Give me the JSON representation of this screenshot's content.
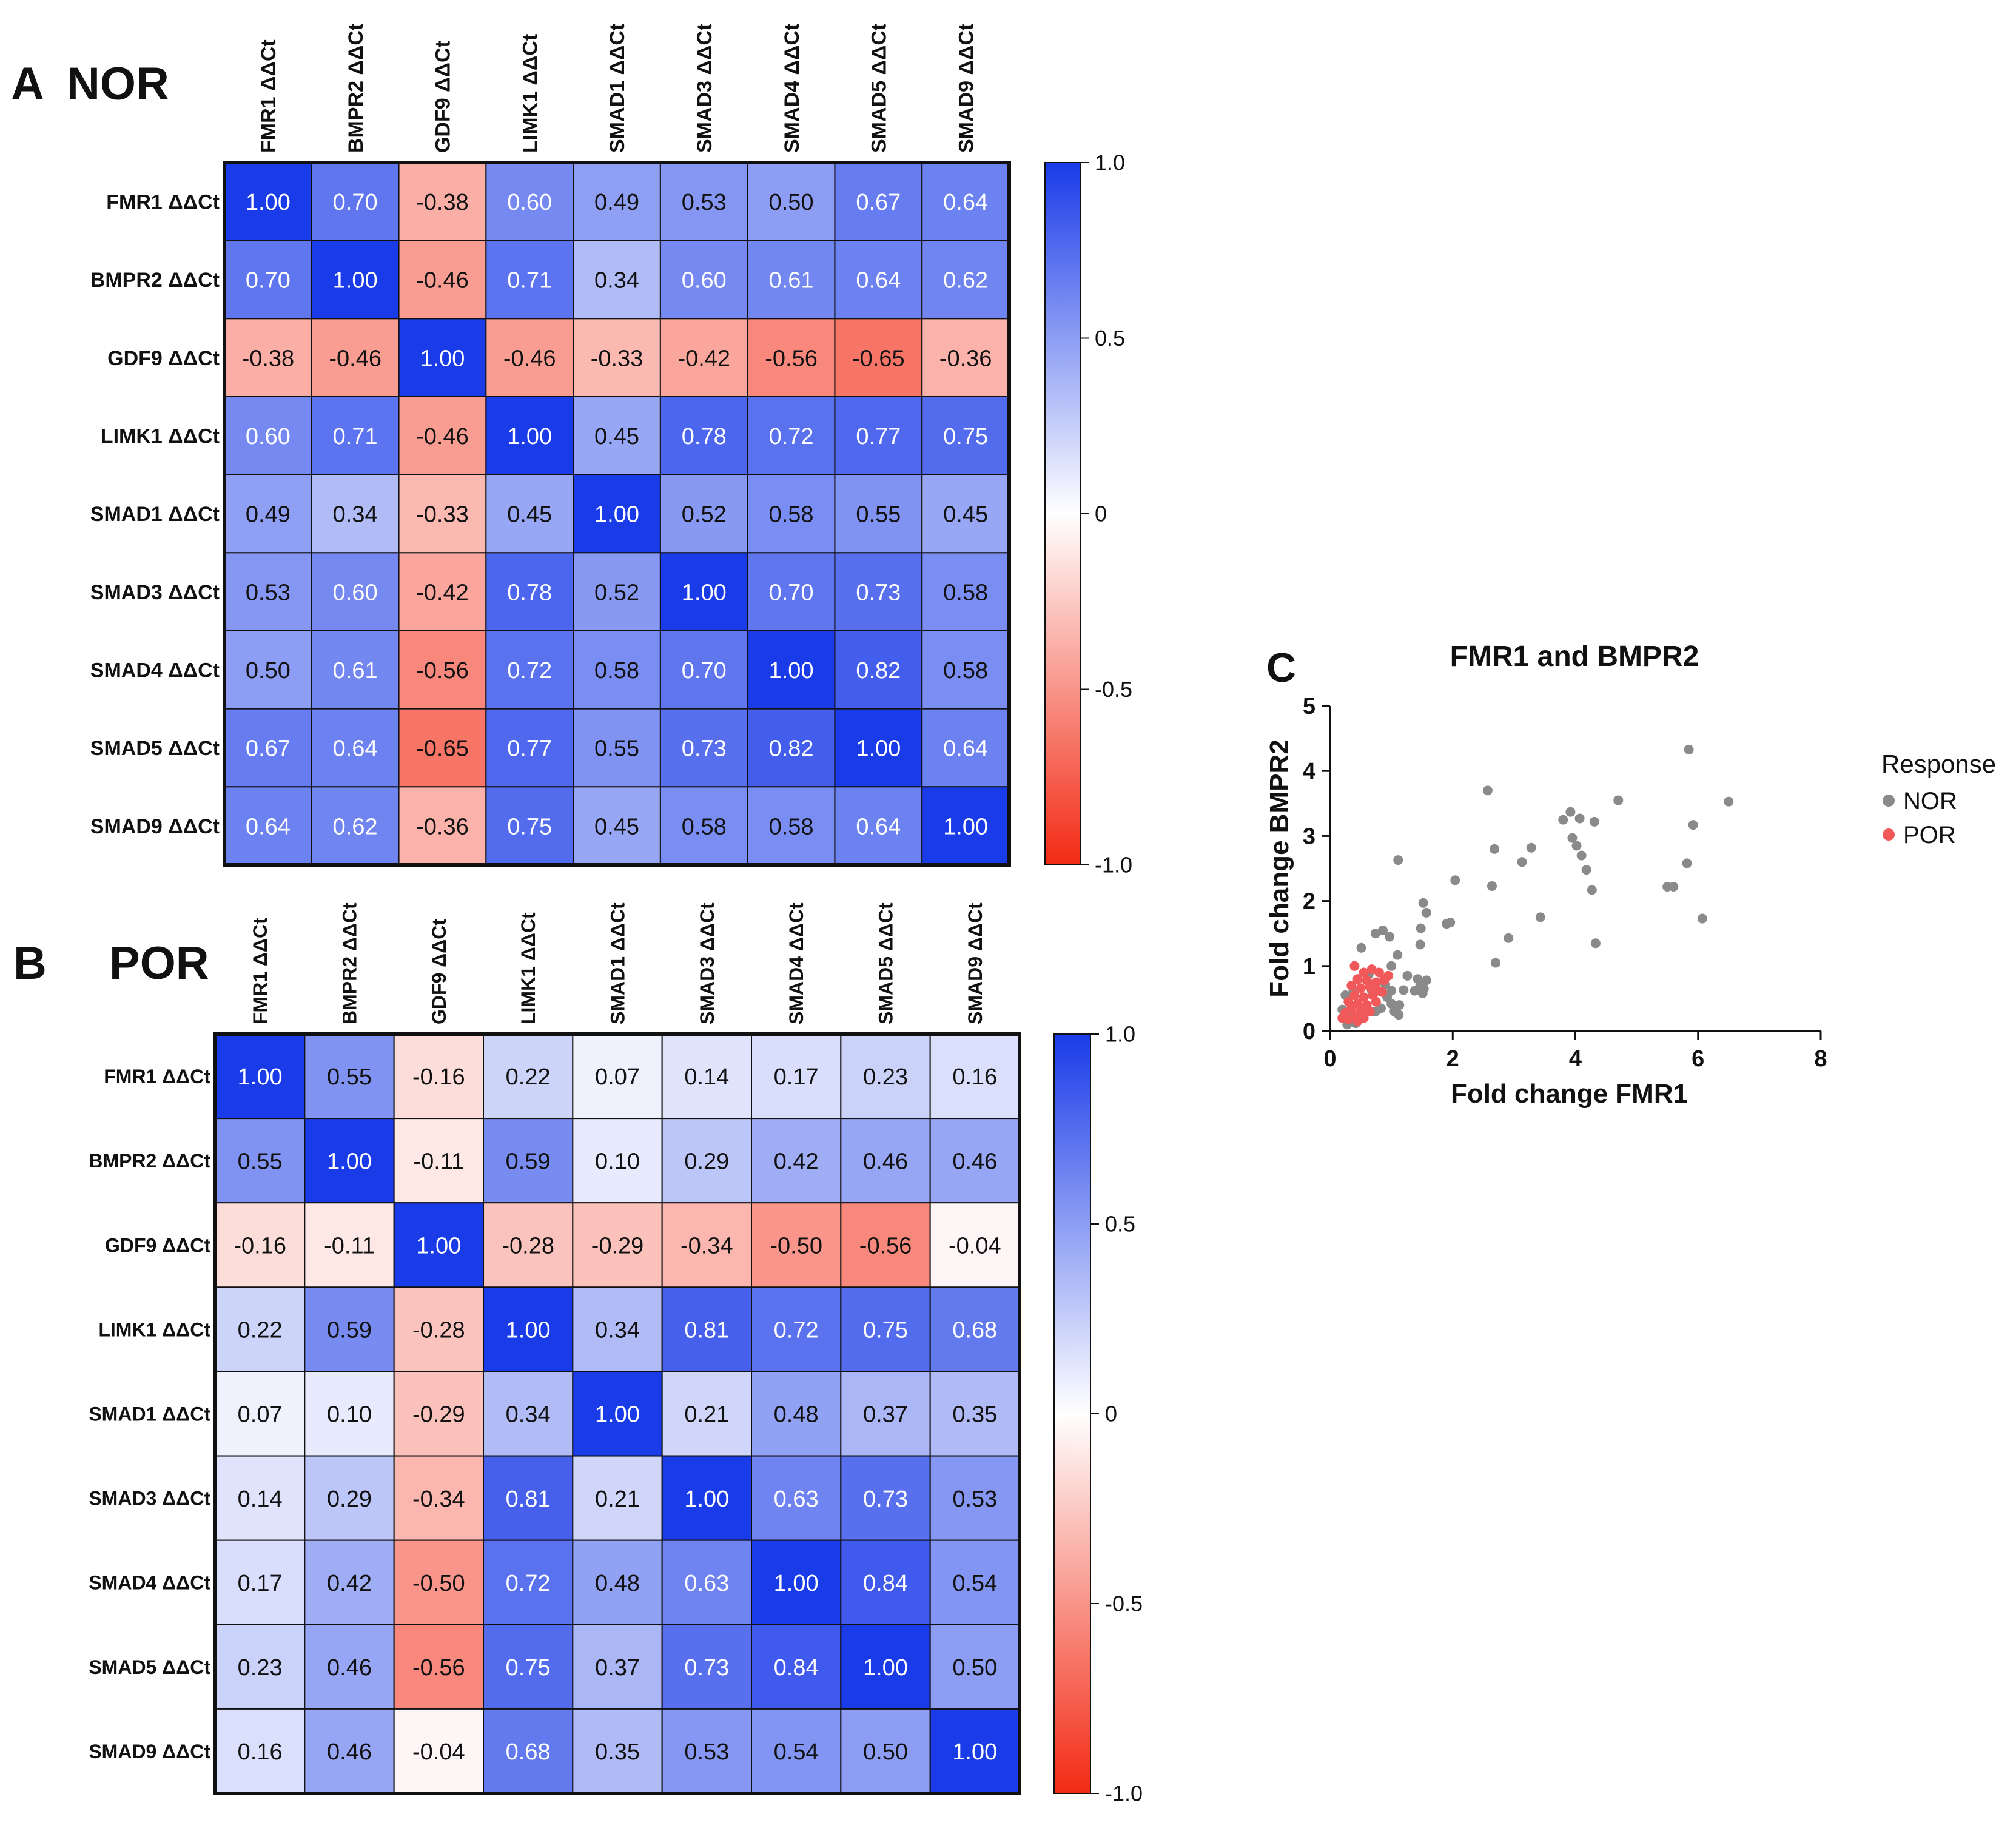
{
  "panels": {
    "a": {
      "letter": "A",
      "title": "NOR"
    },
    "b": {
      "letter": "B",
      "title": "POR"
    },
    "c": {
      "letter": "C",
      "title": "FMR1 and BMPR2"
    }
  },
  "colors": {
    "positive": "#1a3be8",
    "negative": "#f22a14",
    "neutral": "#ffffff",
    "nor_points": "#8a8a8a",
    "por_points": "#f0585a"
  },
  "colorbar": {
    "ticks": [
      "1.0",
      "0.5",
      "0",
      "-0.5",
      "-1.0"
    ]
  },
  "chart_data": [
    {
      "type": "heatmap",
      "title": "NOR",
      "labels": [
        "FMR1 ΔΔCt",
        "BMPR2 ΔΔCt",
        "GDF9 ΔΔCt",
        "LIMK1 ΔΔCt",
        "SMAD1 ΔΔCt",
        "SMAD3 ΔΔCt",
        "SMAD4 ΔΔCt",
        "SMAD5 ΔΔCt",
        "SMAD9 ΔΔCt"
      ],
      "values": [
        [
          "1.00",
          "0.70",
          "-0.38",
          "0.60",
          "0.49",
          "0.53",
          "0.50",
          "0.67",
          "0.64"
        ],
        [
          "0.70",
          "1.00",
          "-0.46",
          "0.71",
          "0.34",
          "0.60",
          "0.61",
          "0.64",
          "0.62"
        ],
        [
          "-0.38",
          "-0.46",
          "1.00",
          "-0.46",
          "-0.33",
          "-0.42",
          "-0.56",
          "-0.65",
          "-0.36"
        ],
        [
          "0.60",
          "0.71",
          "-0.46",
          "1.00",
          "0.45",
          "0.78",
          "0.72",
          "0.77",
          "0.75"
        ],
        [
          "0.49",
          "0.34",
          "-0.33",
          "0.45",
          "1.00",
          "0.52",
          "0.58",
          "0.55",
          "0.45"
        ],
        [
          "0.53",
          "0.60",
          "-0.42",
          "0.78",
          "0.52",
          "1.00",
          "0.70",
          "0.73",
          "0.58"
        ],
        [
          "0.50",
          "0.61",
          "-0.56",
          "0.72",
          "0.58",
          "0.70",
          "1.00",
          "0.82",
          "0.58"
        ],
        [
          "0.67",
          "0.64",
          "-0.65",
          "0.77",
          "0.55",
          "0.73",
          "0.82",
          "1.00",
          "0.64"
        ],
        [
          "0.64",
          "0.62",
          "-0.36",
          "0.75",
          "0.45",
          "0.58",
          "0.58",
          "0.64",
          "1.00"
        ]
      ],
      "vmin": -1.0,
      "vmax": 1.0
    },
    {
      "type": "heatmap",
      "title": "POR",
      "labels": [
        "FMR1 ΔΔCt",
        "BMPR2 ΔΔCt",
        "GDF9 ΔΔCt",
        "LIMK1 ΔΔCt",
        "SMAD1 ΔΔCt",
        "SMAD3 ΔΔCt",
        "SMAD4 ΔΔCt",
        "SMAD5 ΔΔCt",
        "SMAD9 ΔΔCt"
      ],
      "values": [
        [
          "1.00",
          "0.55",
          "-0.16",
          "0.22",
          "0.07",
          "0.14",
          "0.17",
          "0.23",
          "0.16"
        ],
        [
          "0.55",
          "1.00",
          "-0.11",
          "0.59",
          "0.10",
          "0.29",
          "0.42",
          "0.46",
          "0.46"
        ],
        [
          "-0.16",
          "-0.11",
          "1.00",
          "-0.28",
          "-0.29",
          "-0.34",
          "-0.50",
          "-0.56",
          "-0.04"
        ],
        [
          "0.22",
          "0.59",
          "-0.28",
          "1.00",
          "0.34",
          "0.81",
          "0.72",
          "0.75",
          "0.68"
        ],
        [
          "0.07",
          "0.10",
          "-0.29",
          "0.34",
          "1.00",
          "0.21",
          "0.48",
          "0.37",
          "0.35"
        ],
        [
          "0.14",
          "0.29",
          "-0.34",
          "0.81",
          "0.21",
          "1.00",
          "0.63",
          "0.73",
          "0.53"
        ],
        [
          "0.17",
          "0.42",
          "-0.50",
          "0.72",
          "0.48",
          "0.63",
          "1.00",
          "0.84",
          "0.54"
        ],
        [
          "0.23",
          "0.46",
          "-0.56",
          "0.75",
          "0.37",
          "0.73",
          "0.84",
          "1.00",
          "0.50"
        ],
        [
          "0.16",
          "0.46",
          "-0.04",
          "0.68",
          "0.35",
          "0.53",
          "0.54",
          "0.50",
          "1.00"
        ]
      ],
      "vmin": -1.0,
      "vmax": 1.0
    },
    {
      "type": "scatter",
      "title": "FMR1 and BMPR2",
      "xlabel": "Fold change FMR1",
      "ylabel": "Fold change BMPR2",
      "xlim": [
        0,
        8
      ],
      "ylim": [
        0,
        5
      ],
      "xticks": [
        "0",
        "2",
        "4",
        "6",
        "8"
      ],
      "yticks": [
        "0",
        "1",
        "2",
        "3",
        "4",
        "5"
      ],
      "legend_title": "Response",
      "series": [
        {
          "name": "NOR",
          "points": [
            [
              5.85,
              4.33
            ],
            [
              2.57,
              3.7
            ],
            [
              4.7,
              3.55
            ],
            [
              6.5,
              3.53
            ],
            [
              3.92,
              3.37
            ],
            [
              4.07,
              3.27
            ],
            [
              3.8,
              3.25
            ],
            [
              4.31,
              3.22
            ],
            [
              5.92,
              3.17
            ],
            [
              3.95,
              2.97
            ],
            [
              3.28,
              2.82
            ],
            [
              2.68,
              2.8
            ],
            [
              4.02,
              2.85
            ],
            [
              4.1,
              2.7
            ],
            [
              1.11,
              2.63
            ],
            [
              3.13,
              2.6
            ],
            [
              5.82,
              2.58
            ],
            [
              4.18,
              2.48
            ],
            [
              2.04,
              2.32
            ],
            [
              5.5,
              2.22
            ],
            [
              5.6,
              2.22
            ],
            [
              2.64,
              2.23
            ],
            [
              4.27,
              2.17
            ],
            [
              1.96,
              1.67
            ],
            [
              1.9,
              1.65
            ],
            [
              1.52,
              1.97
            ],
            [
              1.57,
              1.82
            ],
            [
              6.07,
              1.73
            ],
            [
              3.43,
              1.75
            ],
            [
              1.48,
              1.58
            ],
            [
              2.91,
              1.43
            ],
            [
              4.33,
              1.35
            ],
            [
              1.47,
              1.33
            ],
            [
              0.86,
              1.55
            ],
            [
              0.74,
              1.5
            ],
            [
              0.97,
              1.45
            ],
            [
              1.1,
              1.17
            ],
            [
              0.51,
              1.28
            ],
            [
              1.0,
              1.0
            ],
            [
              0.63,
              0.87
            ],
            [
              1.26,
              0.85
            ],
            [
              1.43,
              0.8
            ],
            [
              1.57,
              0.78
            ],
            [
              1.47,
              0.7
            ],
            [
              1.53,
              0.65
            ],
            [
              1.2,
              0.63
            ],
            [
              1.38,
              0.62
            ],
            [
              1.51,
              0.58
            ],
            [
              2.7,
              1.05
            ],
            [
              1.0,
              0.62
            ],
            [
              0.93,
              0.52
            ],
            [
              1.0,
              0.42
            ],
            [
              1.13,
              0.4
            ],
            [
              1.05,
              0.3
            ],
            [
              1.12,
              0.25
            ],
            [
              0.83,
              0.35
            ],
            [
              0.74,
              0.3
            ],
            [
              0.55,
              0.25
            ],
            [
              0.68,
              0.62
            ],
            [
              0.38,
              0.62
            ],
            [
              0.25,
              0.55
            ],
            [
              0.2,
              0.33
            ],
            [
              0.32,
              0.2
            ],
            [
              0.42,
              0.12
            ],
            [
              0.28,
              0.1
            ],
            [
              0.9,
              0.72
            ]
          ]
        },
        {
          "name": "POR",
          "points": [
            [
              0.4,
              1.0
            ],
            [
              0.55,
              0.9
            ],
            [
              0.68,
              0.95
            ],
            [
              0.8,
              0.9
            ],
            [
              0.45,
              0.8
            ],
            [
              0.6,
              0.78
            ],
            [
              0.75,
              0.75
            ],
            [
              0.88,
              0.78
            ],
            [
              0.35,
              0.7
            ],
            [
              0.5,
              0.66
            ],
            [
              0.65,
              0.68
            ],
            [
              0.78,
              0.62
            ],
            [
              0.4,
              0.55
            ],
            [
              0.55,
              0.52
            ],
            [
              0.7,
              0.55
            ],
            [
              0.3,
              0.45
            ],
            [
              0.45,
              0.42
            ],
            [
              0.6,
              0.4
            ],
            [
              0.75,
              0.45
            ],
            [
              0.35,
              0.35
            ],
            [
              0.5,
              0.3
            ],
            [
              0.25,
              0.28
            ],
            [
              0.4,
              0.22
            ],
            [
              0.55,
              0.2
            ],
            [
              0.3,
              0.18
            ],
            [
              0.45,
              0.15
            ],
            [
              0.2,
              0.2
            ],
            [
              0.65,
              0.3
            ],
            [
              0.85,
              0.6
            ],
            [
              0.95,
              0.85
            ]
          ]
        }
      ]
    }
  ]
}
